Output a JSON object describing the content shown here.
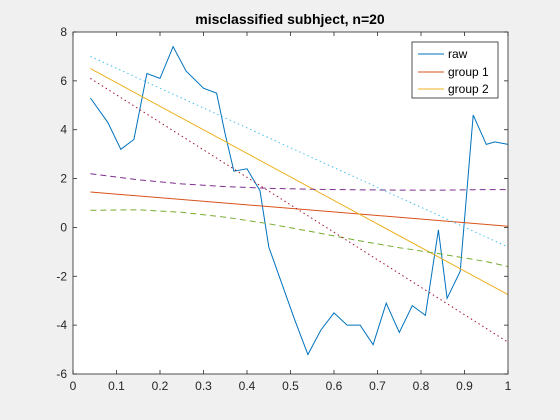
{
  "chart_data": {
    "type": "line",
    "title": "misclassified subhject, n=20",
    "xlabel": "",
    "ylabel": "",
    "xlim": [
      0,
      1
    ],
    "ylim": [
      -6,
      8
    ],
    "xticks": [
      "0",
      "0.1",
      "0.2",
      "0.3",
      "0.4",
      "0.5",
      "0.6",
      "0.7",
      "0.8",
      "0.9",
      "1"
    ],
    "yticks": [
      "-6",
      "-4",
      "-2",
      "0",
      "2",
      "4",
      "6",
      "8"
    ],
    "grid": false,
    "legend_placement": "top-right",
    "series": [
      {
        "name": "raw",
        "color": "#0072bd",
        "style": "solid",
        "x": [
          0.04,
          0.08,
          0.11,
          0.14,
          0.17,
          0.2,
          0.23,
          0.26,
          0.3,
          0.33,
          0.35,
          0.37,
          0.4,
          0.43,
          0.45,
          0.48,
          0.51,
          0.54,
          0.57,
          0.6,
          0.63,
          0.66,
          0.69,
          0.72,
          0.75,
          0.78,
          0.81,
          0.84,
          0.86,
          0.89,
          0.92,
          0.95,
          0.97,
          1.0
        ],
        "y": [
          5.3,
          4.3,
          3.2,
          3.6,
          6.3,
          6.1,
          7.4,
          6.4,
          5.7,
          5.5,
          3.8,
          2.3,
          2.4,
          1.5,
          -0.8,
          -2.3,
          -3.8,
          -5.2,
          -4.2,
          -3.5,
          -4.0,
          -4.0,
          -4.8,
          -3.1,
          -4.3,
          -3.2,
          -3.6,
          -0.1,
          -2.9,
          -1.8,
          4.6,
          3.4,
          3.5,
          3.4
        ]
      },
      {
        "name": "group 1",
        "color": "#d95319",
        "style": "solid",
        "x": [
          0.04,
          1.0
        ],
        "y": [
          1.45,
          0.05
        ]
      },
      {
        "name": "group 2",
        "color": "#edb120",
        "style": "solid",
        "x": [
          0.04,
          1.0
        ],
        "y": [
          6.5,
          -2.75
        ]
      },
      {
        "color": "#7e2f8e",
        "style": "dashed",
        "x": [
          0.04,
          0.15,
          0.25,
          0.35,
          0.45,
          0.55,
          0.65,
          0.75,
          0.85,
          0.95,
          1.0
        ],
        "y": [
          2.2,
          1.95,
          1.78,
          1.67,
          1.6,
          1.56,
          1.54,
          1.53,
          1.53,
          1.55,
          1.55
        ]
      },
      {
        "color": "#77ac30",
        "style": "dashed",
        "x": [
          0.04,
          0.15,
          0.25,
          0.35,
          0.45,
          0.55,
          0.65,
          0.75,
          0.85,
          0.95,
          1.0
        ],
        "y": [
          0.7,
          0.72,
          0.62,
          0.42,
          0.15,
          -0.18,
          -0.52,
          -0.83,
          -1.1,
          -1.4,
          -1.6
        ]
      },
      {
        "color": "#4dbeee",
        "style": "dotted",
        "x": [
          0.04,
          1.0
        ],
        "y": [
          7.0,
          -0.8
        ]
      },
      {
        "color": "#a2142f",
        "style": "dotted",
        "x": [
          0.04,
          1.0
        ],
        "y": [
          6.1,
          -4.7
        ]
      }
    ]
  }
}
